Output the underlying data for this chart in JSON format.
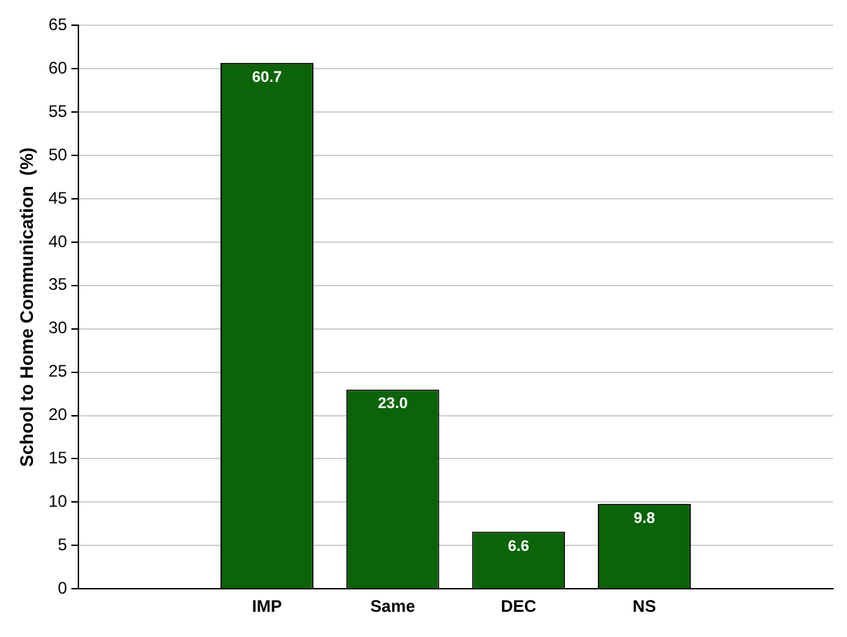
{
  "chart_data": {
    "type": "bar",
    "ylabel": "School to Home Communication  (%)",
    "categories": [
      null,
      "IMP",
      "Same",
      "DEC",
      "NS",
      null
    ],
    "values": [
      null,
      60.7,
      23.0,
      6.6,
      9.8,
      null
    ],
    "value_labels": [
      null,
      "60.7",
      "23.0",
      "6.6",
      "9.8",
      null
    ],
    "color": "#0b6408",
    "ylim": [
      0,
      65
    ],
    "yticks": [
      0,
      5,
      10,
      15,
      20,
      25,
      30,
      35,
      40,
      45,
      50,
      55,
      60,
      65
    ],
    "grid": "y",
    "legend": false
  }
}
